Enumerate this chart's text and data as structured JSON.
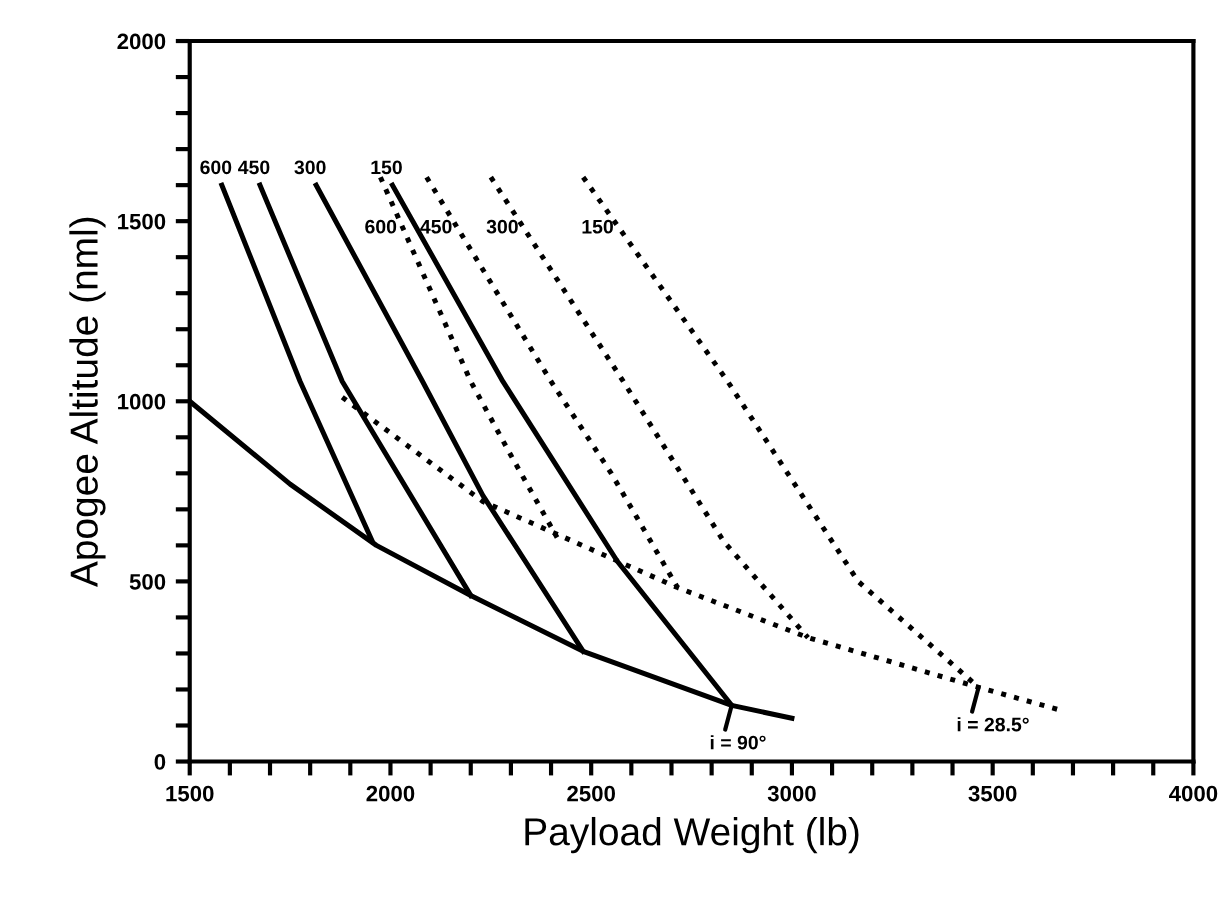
{
  "chart_data": {
    "type": "line",
    "xlabel": "Payload Weight (lb)",
    "ylabel": "Apogee Altitude (nml)",
    "xlim": [
      1500,
      4000
    ],
    "ylim": [
      0,
      2000
    ],
    "xticks": [
      1500,
      {
        "value": 1600,
        "label": null
      },
      {
        "value": 1700,
        "label": null
      },
      {
        "value": 1800,
        "label": null
      },
      {
        "value": 1900,
        "label": null
      },
      2000,
      {
        "value": 2100,
        "label": null
      },
      {
        "value": 2200,
        "label": null
      },
      {
        "value": 2300,
        "label": null
      },
      {
        "value": 2400,
        "label": null
      },
      2500,
      {
        "value": 2600,
        "label": null
      },
      {
        "value": 2700,
        "label": null
      },
      {
        "value": 2800,
        "label": null
      },
      {
        "value": 2900,
        "label": null
      },
      3000,
      {
        "value": 3100,
        "label": null
      },
      {
        "value": 3200,
        "label": null
      },
      {
        "value": 3300,
        "label": null
      },
      {
        "value": 3400,
        "label": null
      },
      3500,
      {
        "value": 3600,
        "label": null
      },
      {
        "value": 3700,
        "label": null
      },
      {
        "value": 3800,
        "label": null
      },
      {
        "value": 3900,
        "label": null
      },
      4000
    ],
    "yticks": [
      0,
      {
        "value": 100,
        "label": null
      },
      {
        "value": 200,
        "label": null
      },
      {
        "value": 300,
        "label": null
      },
      {
        "value": 400,
        "label": null
      },
      500,
      {
        "value": 600,
        "label": null
      },
      {
        "value": 700,
        "label": null
      },
      {
        "value": 800,
        "label": null
      },
      {
        "value": 900,
        "label": null
      },
      1000,
      {
        "value": 1100,
        "label": null
      },
      {
        "value": 1200,
        "label": null
      },
      {
        "value": 1300,
        "label": null
      },
      {
        "value": 1400,
        "label": null
      },
      1500,
      {
        "value": 1600,
        "label": null
      },
      {
        "value": 1700,
        "label": null
      },
      {
        "value": 1800,
        "label": null
      },
      {
        "value": 1900,
        "label": null
      },
      2000
    ],
    "grid": false,
    "legend": false,
    "marker": "none",
    "series": [
      {
        "color": "#000000",
        "line_style": "solid",
        "x": [
          1500,
          1750,
          1965,
          2200,
          2480,
          2850,
          3000
        ],
        "values": [
          1000,
          770,
          600,
          461,
          306,
          156,
          120
        ]
      },
      {
        "color": "#000000",
        "line_style": "solid",
        "x": [
          1580,
          1775,
          1955
        ],
        "values": [
          1600,
          1055,
          611
        ]
      },
      {
        "color": "#000000",
        "line_style": "solid",
        "x": [
          1675,
          1880,
          2200
        ],
        "values": [
          1600,
          1055,
          461
        ]
      },
      {
        "color": "#000000",
        "line_style": "solid",
        "x": [
          1815,
          2080,
          2230,
          2480
        ],
        "values": [
          1600,
          1055,
          739,
          306
        ]
      },
      {
        "color": "#000000",
        "line_style": "solid",
        "x": [
          2005,
          2280,
          2565,
          2850
        ],
        "values": [
          1600,
          1055,
          556,
          156
        ]
      },
      {
        "color": "#000000",
        "line_style": "dotted",
        "x": [
          1880,
          2230,
          2715,
          3040,
          3465,
          3680
        ],
        "values": [
          1011,
          722,
          483,
          344,
          206,
          139
        ]
      },
      {
        "color": "#000000",
        "line_style": "dotted",
        "x": [
          1975,
          2200,
          2300,
          2415
        ],
        "values": [
          1622,
          1055,
          850,
          622
        ]
      },
      {
        "color": "#000000",
        "line_style": "dotted",
        "x": [
          2090,
          2400,
          2550,
          2715
        ],
        "values": [
          1622,
          1055,
          800,
          483
        ]
      },
      {
        "color": "#000000",
        "line_style": "dotted",
        "x": [
          2250,
          2580,
          2830,
          3040
        ],
        "values": [
          1622,
          1055,
          611,
          344
        ]
      },
      {
        "color": "#000000",
        "line_style": "dotted",
        "x": [
          2480,
          2840,
          3165,
          3465
        ],
        "values": [
          1622,
          1055,
          500,
          206
        ]
      }
    ],
    "annotations": [
      {
        "text": "600",
        "x": 1580,
        "y": 1600
      },
      {
        "text": "450",
        "x": 1675,
        "y": 1600
      },
      {
        "text": "300",
        "x": 1815,
        "y": 1600
      },
      {
        "text": "150",
        "x": 2005,
        "y": 1600
      },
      {
        "text": "600",
        "x": 2030,
        "y": 1480
      },
      {
        "text": "450",
        "x": 2168,
        "y": 1480
      },
      {
        "text": "300",
        "x": 2333,
        "y": 1480
      },
      {
        "text": "150",
        "x": 2570,
        "y": 1480
      },
      {
        "text": "i = 90°",
        "x": 2850,
        "y": 156
      },
      {
        "text": "i = 28.5°",
        "x": 3465,
        "y": 206
      }
    ]
  }
}
